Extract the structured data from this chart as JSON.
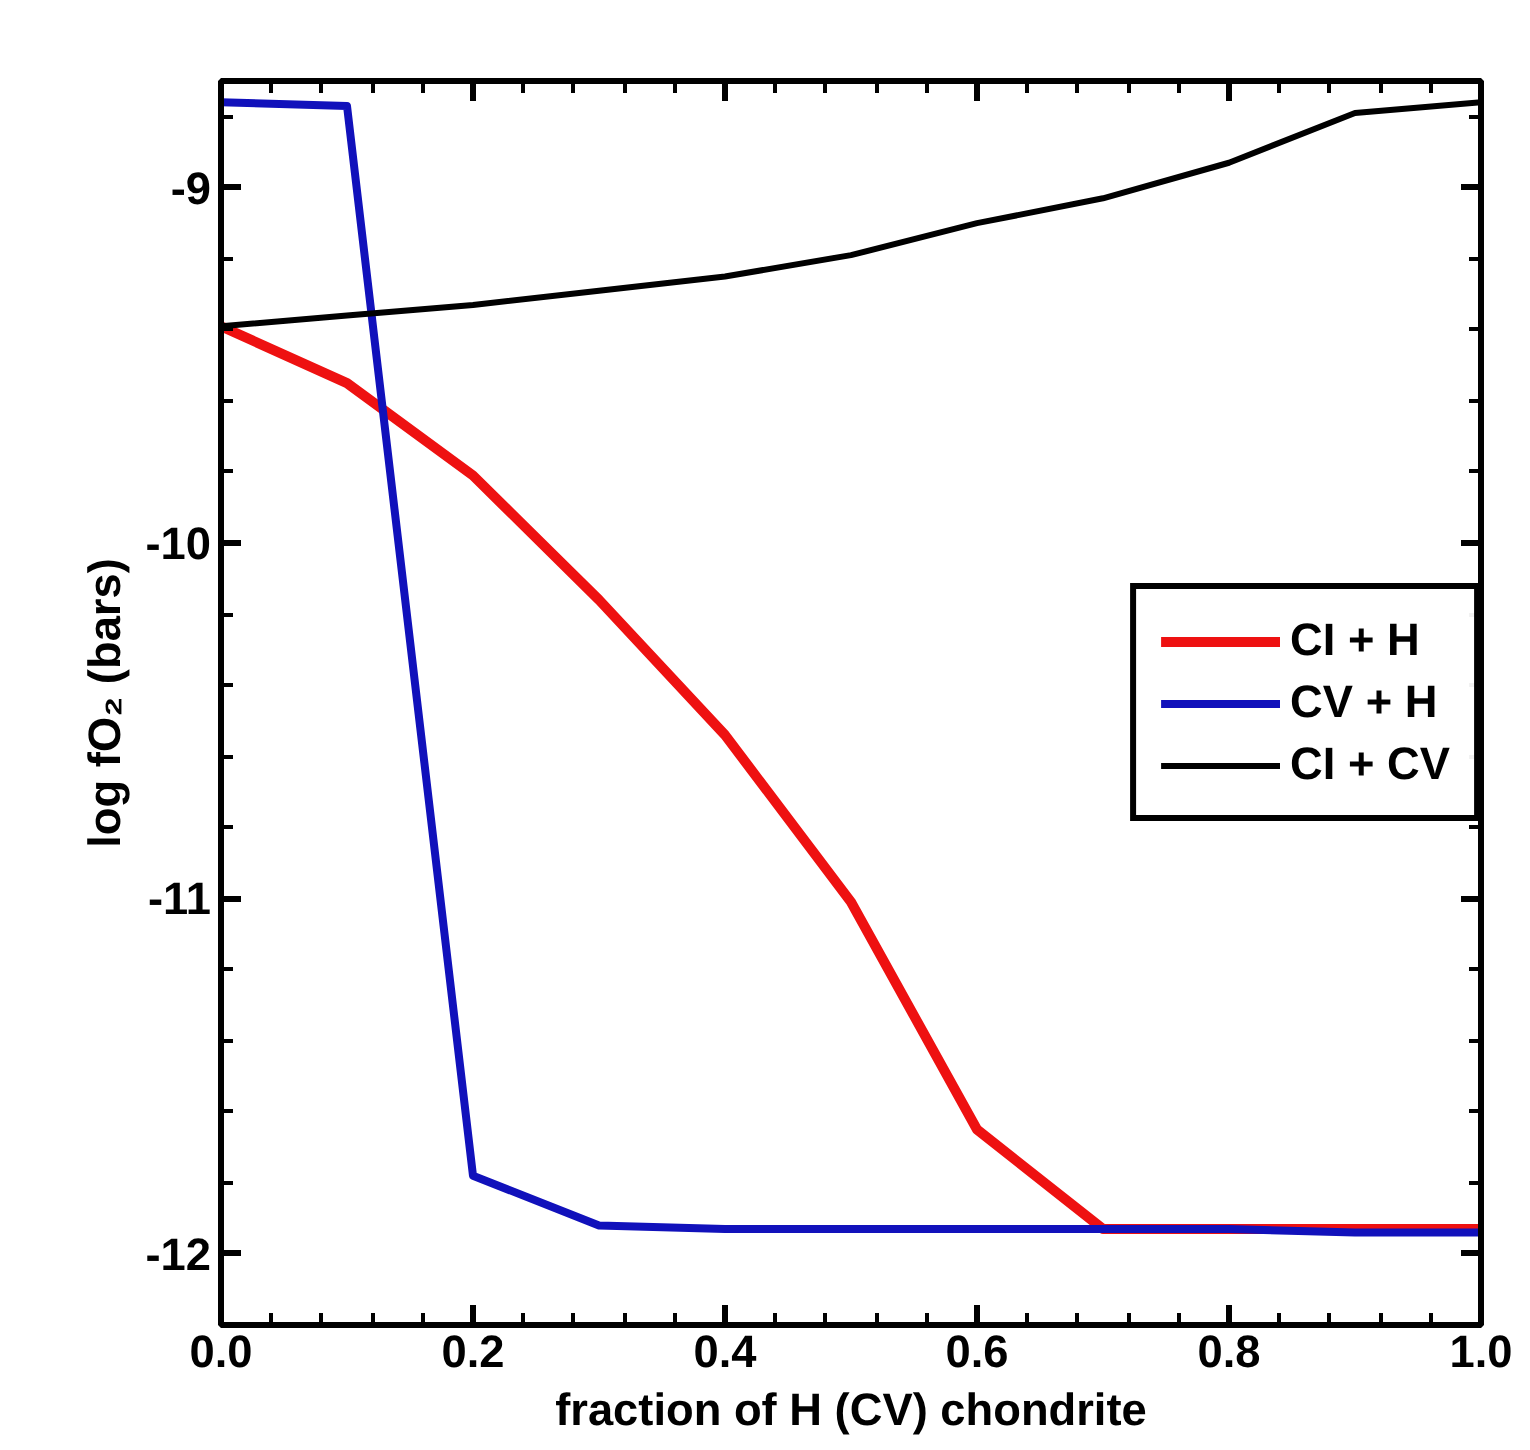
{
  "chart_data": {
    "type": "line",
    "xlabel": "fraction of H (CV) chondrite",
    "ylabel": "log fO₂ (bars)",
    "x": [
      0.0,
      0.1,
      0.2,
      0.3,
      0.4,
      0.5,
      0.6,
      0.7,
      0.8,
      0.9,
      1.0
    ],
    "series": [
      {
        "name": "CI + H",
        "color": "#ee1111",
        "values": [
          -9.39,
          -9.55,
          -9.81,
          -10.16,
          -10.54,
          -11.01,
          -11.65,
          -11.93,
          -11.93,
          -11.93,
          -11.93
        ]
      },
      {
        "name": "CV + H",
        "color": "#1111bb",
        "values": [
          -8.76,
          -8.77,
          -11.78,
          -11.92,
          -11.93,
          -11.93,
          -11.93,
          -11.93,
          -11.93,
          -11.94,
          -11.94
        ]
      },
      {
        "name": "CI + CV",
        "color": "#000000",
        "values": [
          -9.39,
          -9.36,
          -9.33,
          -9.29,
          -9.25,
          -9.19,
          -9.1,
          -9.03,
          -8.93,
          -8.79,
          -8.76
        ]
      }
    ],
    "xlim": [
      0.0,
      1.0
    ],
    "ylim": [
      -12.2,
      -8.7
    ],
    "xticks": [
      {
        "value": 0.0,
        "label": "0.0"
      },
      0.2,
      0.4,
      0.6,
      0.8,
      {
        "value": 1.0,
        "label": "1.0"
      }
    ],
    "yticks": [
      -12,
      -11,
      -10,
      -9
    ],
    "grid": false,
    "legend": "right",
    "marker": "none",
    "line_style": "solid"
  }
}
